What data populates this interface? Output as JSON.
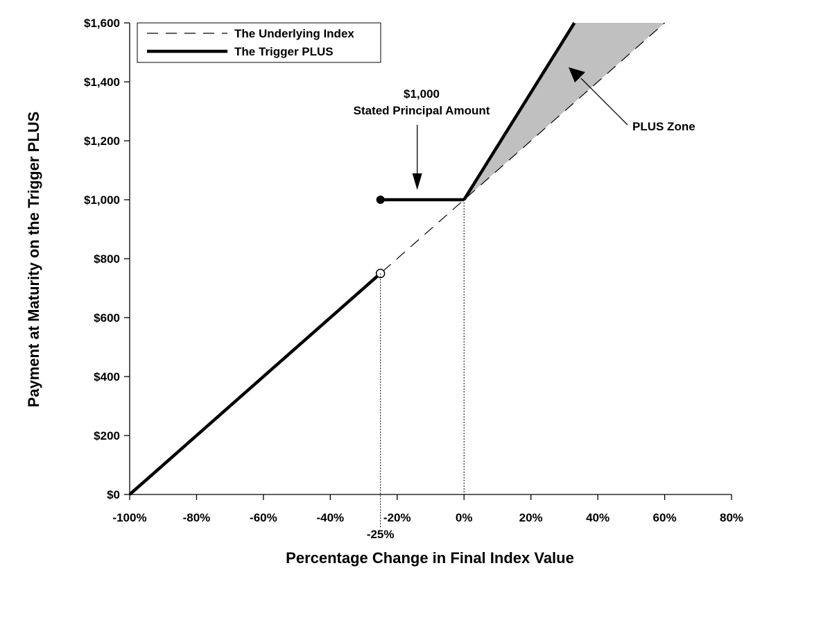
{
  "chart_data": {
    "type": "line",
    "xlabel": "Percentage Change in Final Index Value",
    "ylabel": "Payment at Maturity on the Trigger PLUS",
    "xlim": [
      -100,
      80
    ],
    "ylim": [
      0,
      1600
    ],
    "x_ticks": [
      -100,
      -80,
      -60,
      -40,
      -20,
      0,
      20,
      40,
      60,
      80
    ],
    "x_tick_labels": [
      "-100%",
      "-80%",
      "-60%",
      "-40%",
      "-20%",
      "0%",
      "20%",
      "40%",
      "60%",
      "80%"
    ],
    "y_ticks": [
      0,
      200,
      400,
      600,
      800,
      1000,
      1200,
      1400,
      1600
    ],
    "y_tick_labels": [
      "$0",
      "$200",
      "$400",
      "$600",
      "$800",
      "$1,000",
      "$1,200",
      "$1,400",
      "$1,600"
    ],
    "grid": false,
    "legend": {
      "placement": "top-left",
      "entries": [
        "The Underlying Index",
        "The Trigger PLUS"
      ]
    },
    "series": [
      {
        "name": "The Underlying Index",
        "style": "dashed",
        "x": [
          -100,
          60
        ],
        "y": [
          0,
          1600
        ]
      },
      {
        "name": "The Trigger PLUS",
        "style": "solid",
        "segments": [
          {
            "x": [
              -100,
              -25
            ],
            "y": [
              0,
              750
            ],
            "end_marker": "open"
          },
          {
            "x": [
              -25,
              0
            ],
            "y": [
              1000,
              1000
            ],
            "start_marker": "filled"
          },
          {
            "x": [
              0,
              33
            ],
            "y": [
              1000,
              1600
            ]
          }
        ]
      }
    ],
    "annotations": {
      "trigger_label": "-25%",
      "trigger_x": -25,
      "principal_line1": "$1,000",
      "principal_line2": "Stated Principal Amount",
      "principal_arrow_x": -14,
      "plus_zone_label": "PLUS Zone"
    },
    "plus_zone": {
      "x_start": 0,
      "top_x": [
        33,
        60
      ],
      "fill": "#c0c0c0"
    },
    "colors": {
      "line": "#000000",
      "zone": "#c0c0c0"
    }
  }
}
